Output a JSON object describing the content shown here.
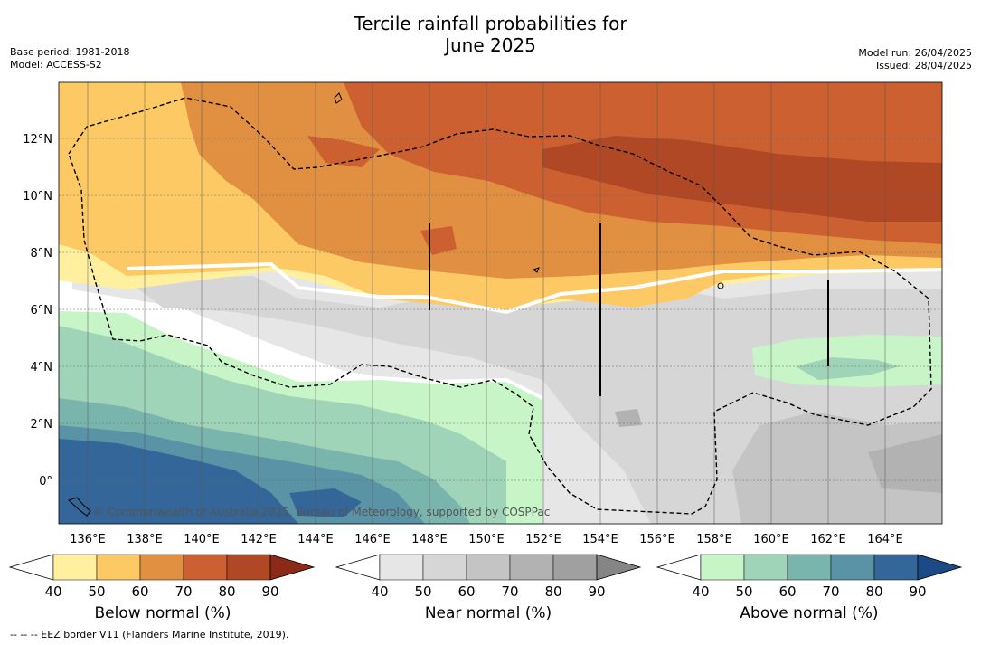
{
  "title_line1": "Tercile rainfall probabilities for",
  "title_line2": "June 2025",
  "meta_left": [
    "Base period: 1981-2018",
    "Model: ACCESS-S2"
  ],
  "meta_right": [
    "Model run: 26/04/2025",
    "Issued: 28/04/2025"
  ],
  "copyright": "© Commonwealth of Australia 2025, Bureau of Meteorology, supported by COSPPac",
  "x_axis": [
    "136°E",
    "138°E",
    "140°E",
    "142°E",
    "144°E",
    "146°E",
    "148°E",
    "150°E",
    "152°E",
    "154°E",
    "156°E",
    "158°E",
    "160°E",
    "162°E",
    "164°E"
  ],
  "y_axis": [
    "12°N",
    "10°N",
    "8°N",
    "6°N",
    "4°N",
    "2°N",
    "0°"
  ],
  "colorbars": [
    {
      "label": "Below normal (%)",
      "ticks": [
        "40",
        "50",
        "60",
        "70",
        "80",
        "90"
      ],
      "colors": [
        "#fff0a0",
        "#fdc964",
        "#e09040",
        "#cc6030",
        "#b04825",
        "#8c2a18"
      ]
    },
    {
      "label": "Near normal (%)",
      "ticks": [
        "40",
        "50",
        "60",
        "70",
        "80",
        "90"
      ],
      "colors": [
        "#e6e6e6",
        "#d6d6d6",
        "#c4c4c4",
        "#b2b2b2",
        "#a0a0a0",
        "#858585"
      ]
    },
    {
      "label": "Above normal (%)",
      "ticks": [
        "40",
        "50",
        "60",
        "70",
        "80",
        "90"
      ],
      "colors": [
        "#c8f5c8",
        "#9fd4b8",
        "#7ab5ad",
        "#5a92a6",
        "#34669a",
        "#1c4a86"
      ]
    }
  ],
  "footer": "--  --  -- EEZ border V11 (Flanders Marine Institute, 2019)."
}
